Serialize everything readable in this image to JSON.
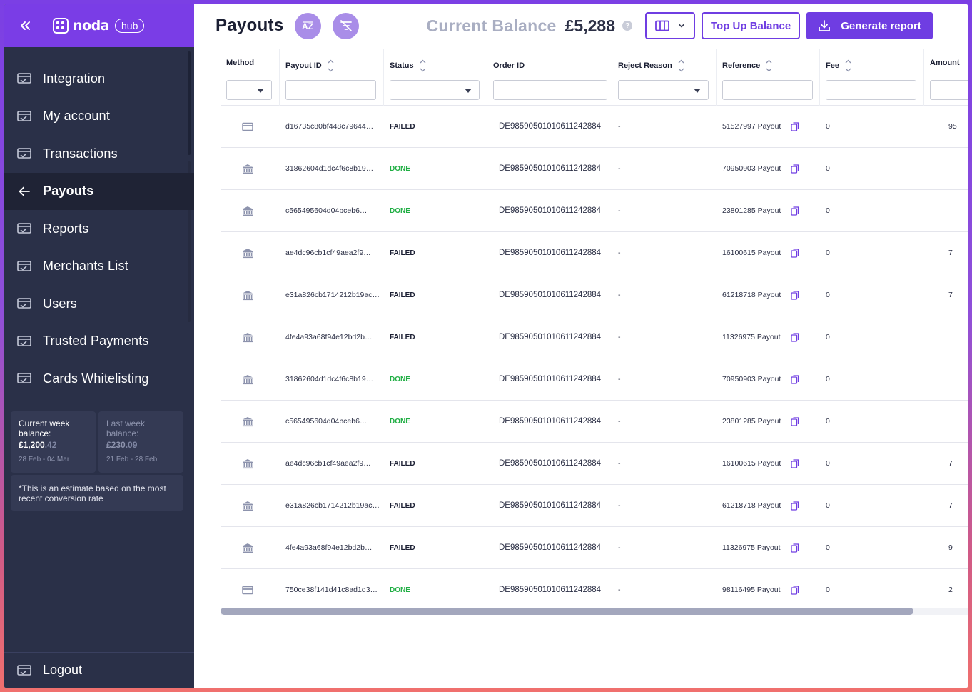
{
  "sidebar": {
    "brand": "noda",
    "badge": "hub",
    "items": [
      {
        "label": "Integration",
        "name": "sidebar-item-integration",
        "active": false
      },
      {
        "label": "My account",
        "name": "sidebar-item-my-account",
        "active": false
      },
      {
        "label": "Transactions",
        "name": "sidebar-item-transactions",
        "active": false
      },
      {
        "label": "Payouts",
        "name": "sidebar-item-payouts",
        "active": true
      },
      {
        "label": "Reports",
        "name": "sidebar-item-reports",
        "active": false
      },
      {
        "label": "Merchants List",
        "name": "sidebar-item-merchants-list",
        "active": false
      },
      {
        "label": "Users",
        "name": "sidebar-item-users",
        "active": false
      },
      {
        "label": "Trusted Payments",
        "name": "sidebar-item-trusted-payments",
        "active": false
      },
      {
        "label": "Cards Whitelisting",
        "name": "sidebar-item-cards-whitelisting",
        "active": false
      }
    ],
    "current_week": {
      "label": "Current week balance:",
      "amount_main": "£1,200",
      "amount_dec": ".42",
      "range": "28 Feb - 04 Mar"
    },
    "last_week": {
      "label": "Last week balance:",
      "amount_main": "£230",
      "amount_dec": ".09",
      "range": "21 Feb - 28 Feb"
    },
    "note": "*This is an estimate based on the most recent conversion rate",
    "logout": "Logout"
  },
  "header": {
    "title": "Payouts",
    "balance_label": "Current Balance",
    "balance_value": "£5,288",
    "help": "?",
    "topup_label": "Top Up Balance",
    "report_label": "Generate report"
  },
  "table": {
    "columns": [
      {
        "label": "Method",
        "sortable": false,
        "filter": "select"
      },
      {
        "label": "Payout ID",
        "sortable": true,
        "filter": "text"
      },
      {
        "label": "Status",
        "sortable": true,
        "filter": "select"
      },
      {
        "label": "Order ID",
        "sortable": false,
        "filter": "text"
      },
      {
        "label": "Reject Reason",
        "sortable": true,
        "filter": "select"
      },
      {
        "label": "Reference",
        "sortable": true,
        "filter": "text"
      },
      {
        "label": "Fee",
        "sortable": true,
        "filter": "text"
      },
      {
        "label": "Amount",
        "sortable": false,
        "filter": "text"
      }
    ],
    "rows": [
      {
        "method": "card-icon",
        "payout_id": "d16735c80bf448c79644…",
        "status": "FAILED",
        "order_id": "DE98590501010611242884",
        "reject": "-",
        "reference": "51527997 Payout",
        "fee": "0",
        "amount": "95"
      },
      {
        "method": "bank-icon",
        "payout_id": "31862604d1dc4f6c8b19…",
        "status": "DONE",
        "order_id": "DE98590501010611242884",
        "reject": "-",
        "reference": "70950903 Payout",
        "fee": "0",
        "amount": ""
      },
      {
        "method": "bank-icon",
        "payout_id": "c565495604d04bceb6…",
        "status": "DONE",
        "order_id": "DE98590501010611242884",
        "reject": "-",
        "reference": "23801285 Payout",
        "fee": "0",
        "amount": ""
      },
      {
        "method": "bank-icon",
        "payout_id": "ae4dc96cb1cf49aea2f9…",
        "status": "FAILED",
        "order_id": "DE98590501010611242884",
        "reject": "-",
        "reference": "16100615 Payout",
        "fee": "0",
        "amount": "7"
      },
      {
        "method": "bank-icon",
        "payout_id": "e31a826cb1714212b19ac…",
        "status": "FAILED",
        "order_id": "DE98590501010611242884",
        "reject": "-",
        "reference": "61218718 Payout",
        "fee": "0",
        "amount": "7"
      },
      {
        "method": "bank-icon",
        "payout_id": "4fe4a93a68f94e12bd2b…",
        "status": "FAILED",
        "order_id": "DE98590501010611242884",
        "reject": "-",
        "reference": "11326975 Payout",
        "fee": "0",
        "amount": ""
      },
      {
        "method": "bank-icon",
        "payout_id": "31862604d1dc4f6c8b19…",
        "status": "DONE",
        "order_id": "DE98590501010611242884",
        "reject": "-",
        "reference": "70950903 Payout",
        "fee": "0",
        "amount": ""
      },
      {
        "method": "bank-icon",
        "payout_id": "c565495604d04bceb6…",
        "status": "DONE",
        "order_id": "DE98590501010611242884",
        "reject": "-",
        "reference": "23801285 Payout",
        "fee": "0",
        "amount": ""
      },
      {
        "method": "bank-icon",
        "payout_id": "ae4dc96cb1cf49aea2f9…",
        "status": "FAILED",
        "order_id": "DE98590501010611242884",
        "reject": "-",
        "reference": "16100615 Payout",
        "fee": "0",
        "amount": "7"
      },
      {
        "method": "bank-icon",
        "payout_id": "e31a826cb1714212b19ac…",
        "status": "FAILED",
        "order_id": "DE98590501010611242884",
        "reject": "-",
        "reference": "61218718 Payout",
        "fee": "0",
        "amount": "7"
      },
      {
        "method": "bank-icon",
        "payout_id": "4fe4a93a68f94e12bd2b…",
        "status": "FAILED",
        "order_id": "DE98590501010611242884",
        "reject": "-",
        "reference": "11326975 Payout",
        "fee": "0",
        "amount": "9"
      },
      {
        "method": "card-icon",
        "payout_id": "750ce38f141d41c8ad1d3…",
        "status": "DONE",
        "order_id": "DE98590501010611242884",
        "reject": "-",
        "reference": "98116495 Payout",
        "fee": "0",
        "amount": "2"
      }
    ]
  },
  "colors": {
    "accent": "#6f3de2",
    "sidebar": "#2a3048",
    "done": "#1fae43"
  }
}
